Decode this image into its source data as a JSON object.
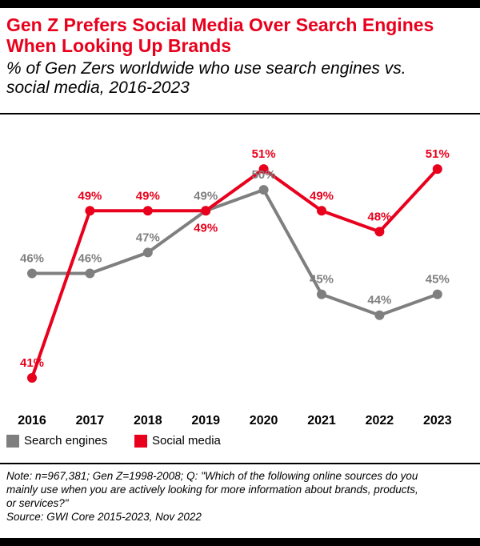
{
  "header": {
    "title_line1": "Gen Z Prefers Social Media Over Search Engines",
    "title_line2": "When Looking Up Brands",
    "subtitle_line1": "% of Gen Zers worldwide who use search engines vs.",
    "subtitle_line2": "social media, 2016-2023"
  },
  "chart_data": {
    "type": "line",
    "categories": [
      "2016",
      "2017",
      "2018",
      "2019",
      "2020",
      "2021",
      "2022",
      "2023"
    ],
    "series": [
      {
        "name": "Search engines",
        "values": [
          46,
          46,
          47,
          49,
          50,
          45,
          44,
          45
        ],
        "labels": [
          "46%",
          "46%",
          "47%",
          "49%",
          "50%",
          "45%",
          "44%",
          "45%"
        ],
        "label_pos": [
          "above",
          "above",
          "above",
          "above",
          "above",
          "above",
          "above",
          "above"
        ],
        "color": "#7f7f7f"
      },
      {
        "name": "Social media",
        "values": [
          41,
          49,
          49,
          49,
          51,
          49,
          48,
          51
        ],
        "labels": [
          "41%",
          "49%",
          "49%",
          "49%",
          "51%",
          "49%",
          "48%",
          "51%"
        ],
        "label_pos": [
          "above",
          "above",
          "above",
          "below",
          "above",
          "above",
          "above",
          "above"
        ],
        "color": "#e8001c"
      }
    ],
    "ylim": [
      40.5,
      52
    ],
    "grid": false,
    "legend": "bottom-left"
  },
  "note": {
    "line1": "Note: n=967,381; Gen Z=1998-2008; Q: \"Which of the following online sources do you",
    "line2": "mainly use when you are actively looking for more information about brands, products,",
    "line3": "or services?\"",
    "line4": "Source: GWI Core 2015-2023, Nov 2022"
  }
}
